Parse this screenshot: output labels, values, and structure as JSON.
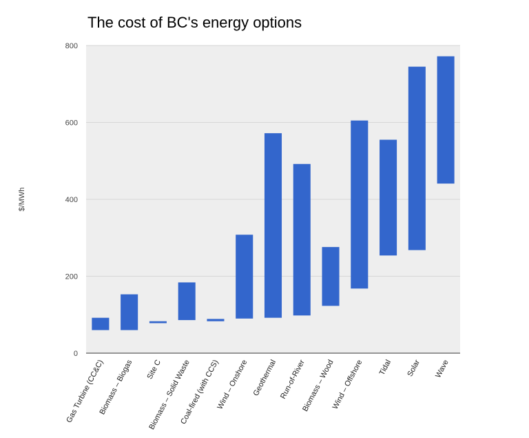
{
  "chart_data": {
    "type": "bar",
    "subtype": "floating-range",
    "title": "The cost of BC's energy options",
    "xlabel": "",
    "ylabel": "$/MWh",
    "ylim": [
      0,
      800
    ],
    "yticks": [
      0,
      200,
      400,
      600,
      800
    ],
    "ytick_labels": [
      "0",
      "200",
      "400",
      "600",
      "800"
    ],
    "grid": true,
    "legend": "none",
    "color": "#3366cc",
    "categories": [
      "Gas Turbine (CC&C)",
      "Biomass – Biogas",
      "Site C",
      "Biomass – Solid Waste",
      "Coal-fired (with CCS)",
      "Wind – Onshore",
      "Geothermal",
      "Run-of-River",
      "Biomass – Wood",
      "Wind – Offshore",
      "Tidal",
      "Solar",
      "Wave"
    ],
    "low": [
      60,
      60,
      78,
      86,
      83,
      90,
      92,
      98,
      123,
      168,
      254,
      268,
      441
    ],
    "high": [
      92,
      153,
      83,
      184,
      89,
      308,
      572,
      492,
      276,
      605,
      555,
      745,
      772
    ]
  }
}
